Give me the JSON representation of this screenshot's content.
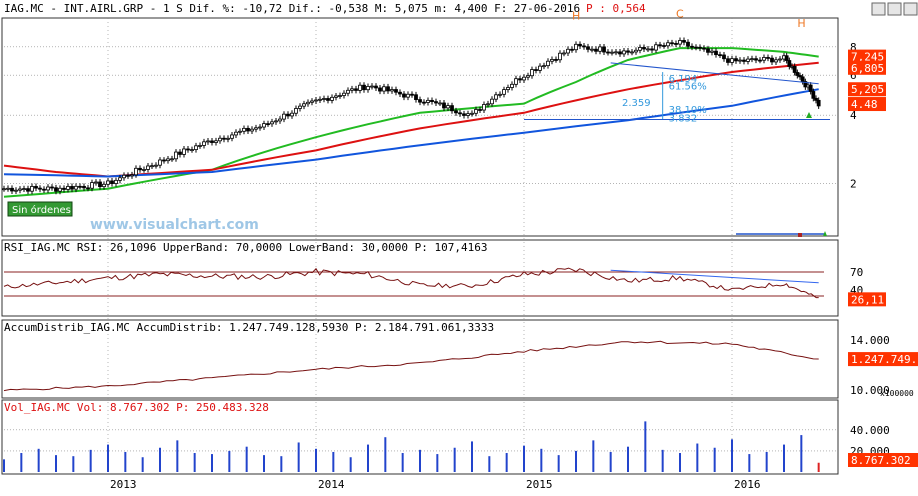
{
  "header": {
    "main": "IAG.MC - INT.AIRL.GRP - 1 S Dif. %: -10,72 Dif.: -0,538 M: 5,075 m: 4,400 F: 27-06-2016",
    "p_label": "P : 0,564"
  },
  "watermark": "www.visualchart.com",
  "badge": "Sin órdenes",
  "colors": {
    "price": "#000000",
    "ma_short": "#22bb22",
    "ma_mid": "#dd1111",
    "ma_long": "#1155dd",
    "label_bg": "#ff3300",
    "rsi_line": "#771111",
    "rsi_overbought": "#3366ee",
    "volume_bar": "#2244cc",
    "volume_last": "#dd2222",
    "grid": "#888888",
    "panel_border": "#333333",
    "badge_bg": "#339933",
    "header_text": "#000000",
    "red_text": "#dd1111"
  },
  "chart_data": [
    {
      "panel": "price",
      "type": "line",
      "scale": "log",
      "ylim": [
        1.2,
        10.5
      ],
      "yticks": [
        "8",
        "6",
        "4",
        "2"
      ],
      "x_ticks": [
        "2013",
        "2014",
        "2015",
        "2016"
      ],
      "x_range": [
        "2012-07",
        "2016-07"
      ],
      "series": [
        {
          "role": "price",
          "x": [
            "2012-07",
            "2012-10",
            "2013-01",
            "2013-04",
            "2013-07",
            "2013-10",
            "2014-01",
            "2014-04",
            "2014-07",
            "2014-10",
            "2015-01",
            "2015-04",
            "2015-07",
            "2015-10",
            "2016-01",
            "2016-04",
            "2016-06"
          ],
          "values": [
            1.9,
            1.9,
            2.0,
            2.5,
            3.1,
            3.6,
            4.6,
            5.4,
            4.7,
            4.0,
            6.0,
            8.0,
            7.6,
            8.3,
            6.9,
            7.1,
            4.48
          ]
        },
        {
          "role": "ma_short",
          "x": [
            "2012-07",
            "2013-01",
            "2013-07",
            "2014-01",
            "2014-07",
            "2015-01",
            "2015-04",
            "2015-07",
            "2015-10",
            "2016-01",
            "2016-04",
            "2016-06"
          ],
          "values": [
            1.75,
            1.9,
            2.3,
            3.2,
            4.1,
            4.5,
            5.6,
            7.0,
            7.9,
            7.9,
            7.6,
            7.245
          ]
        },
        {
          "role": "ma_mid",
          "x": [
            "2012-07",
            "2012-10",
            "2013-01",
            "2013-07",
            "2014-01",
            "2014-07",
            "2015-01",
            "2015-07",
            "2016-01",
            "2016-06"
          ],
          "values": [
            2.4,
            2.25,
            2.15,
            2.3,
            2.8,
            3.5,
            4.1,
            5.2,
            6.2,
            6.805
          ]
        },
        {
          "role": "ma_long",
          "x": [
            "2012-07",
            "2013-01",
            "2013-07",
            "2014-01",
            "2014-07",
            "2015-01",
            "2015-07",
            "2016-01",
            "2016-06"
          ],
          "values": [
            2.2,
            2.15,
            2.25,
            2.55,
            2.95,
            3.35,
            3.8,
            4.4,
            5.205
          ]
        }
      ],
      "labels": {
        "last": [
          "7,245",
          "6,805",
          "5,205",
          "4.48"
        ]
      },
      "annotations": {
        "pattern_marks": [
          "H",
          "C",
          "H"
        ],
        "fib": [
          "6.194",
          "61.56%",
          "2.359",
          "38.10%",
          "3.832"
        ]
      }
    },
    {
      "panel": "rsi",
      "type": "line",
      "title": "RSI_IAG.MC RSI: 26,1096 UpperBand: 70,0000 LowerBand: 30,0000 P: 107,4163",
      "ylim": [
        0,
        100
      ],
      "upper_band": 70,
      "lower_band": 30,
      "yticks": [
        "70",
        "40"
      ],
      "last_value": "26,11",
      "series": [
        {
          "name": "RSI",
          "x": [
            "2012-07",
            "2012-10",
            "2013-01",
            "2013-04",
            "2013-07",
            "2013-10",
            "2014-01",
            "2014-04",
            "2014-07",
            "2014-10",
            "2015-01",
            "2015-04",
            "2015-07",
            "2015-10",
            "2016-01",
            "2016-04",
            "2016-06"
          ],
          "values": [
            45,
            52,
            60,
            66,
            63,
            62,
            70,
            66,
            48,
            47,
            66,
            74,
            55,
            60,
            40,
            51,
            26.11
          ]
        }
      ]
    },
    {
      "panel": "accum_distrib",
      "type": "line",
      "title": "AccumDistrib_IAG.MC AccumDistrib: 1.247.749.128,5930 P: 2.184.791.061,3333",
      "ylim": [
        9500,
        14500
      ],
      "yticks": [
        "14.000",
        "10.000"
      ],
      "scale_note": "x100000",
      "last_value": "1.247.749.1",
      "series": [
        {
          "name": "AccumDistrib",
          "x": [
            "2012-07",
            "2013-01",
            "2013-07",
            "2014-01",
            "2014-07",
            "2015-01",
            "2015-07",
            "2016-01",
            "2016-06"
          ],
          "values": [
            9950,
            10300,
            10950,
            11650,
            12150,
            13100,
            13900,
            13700,
            12477
          ]
        }
      ]
    },
    {
      "panel": "volume",
      "type": "bar",
      "title": "Vol_IAG.MC Vol: 8.767.302 P: 250.483.328",
      "ylim": [
        0,
        55000
      ],
      "yticks": [
        "40.000",
        "20.000"
      ],
      "last_value": "8.767.302",
      "x_range": [
        "2012-07",
        "2016-06"
      ],
      "values": [
        12000,
        18000,
        22000,
        16000,
        15000,
        21000,
        26000,
        19000,
        14000,
        23000,
        30000,
        18000,
        17000,
        20000,
        24000,
        16000,
        15000,
        28000,
        22000,
        19000,
        14000,
        26000,
        33000,
        18000,
        21000,
        17000,
        23000,
        29000,
        15000,
        18000,
        25000,
        22000,
        16000,
        20000,
        30000,
        19000,
        24000,
        48000,
        21000,
        18000,
        27000,
        23000,
        31000,
        17000,
        19000,
        26000,
        35000,
        8767
      ]
    }
  ]
}
